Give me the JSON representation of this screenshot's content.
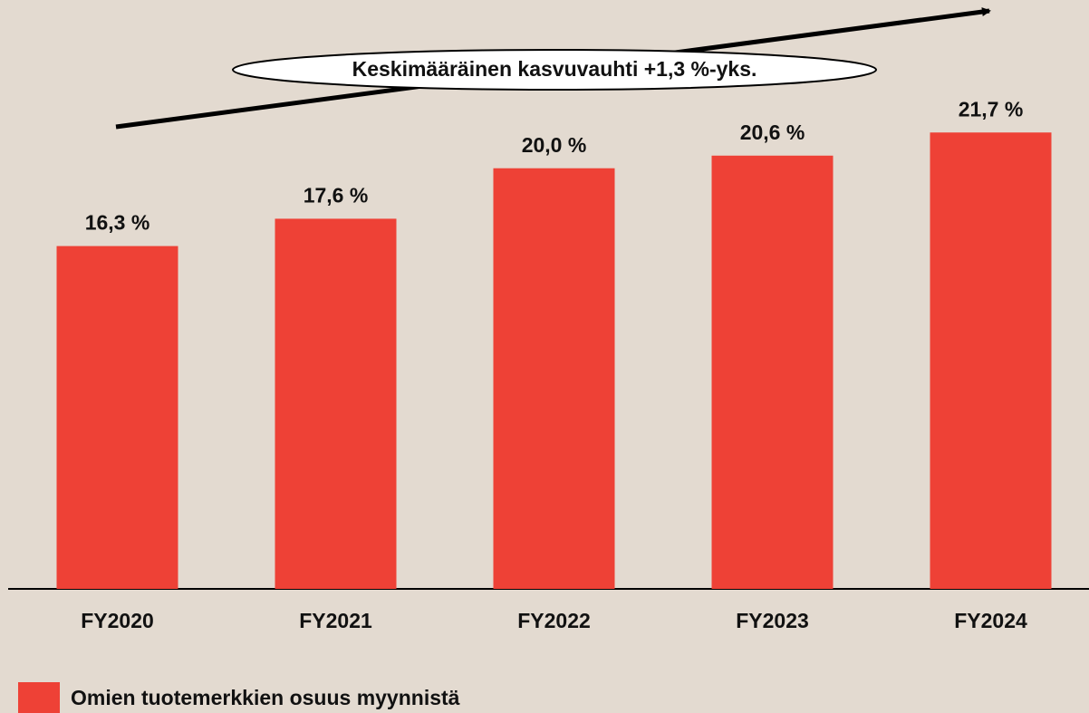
{
  "chart_data": {
    "type": "bar",
    "annotation": "Keskimääräinen kasvuvauhti +1,3 %-yks.",
    "categories": [
      "FY2020",
      "FY2021",
      "FY2022",
      "FY2023",
      "FY2024"
    ],
    "series": [
      {
        "name": "Omien tuotemerkkien osuus myynnistä",
        "color": "#ee4136",
        "values": [
          16.3,
          17.6,
          20.0,
          20.6,
          21.7
        ],
        "value_labels": [
          "16,3 %",
          "17,6 %",
          "20,0 %",
          "20,6 %",
          "21,7 %"
        ]
      }
    ],
    "ylim": [
      0,
      28
    ]
  }
}
